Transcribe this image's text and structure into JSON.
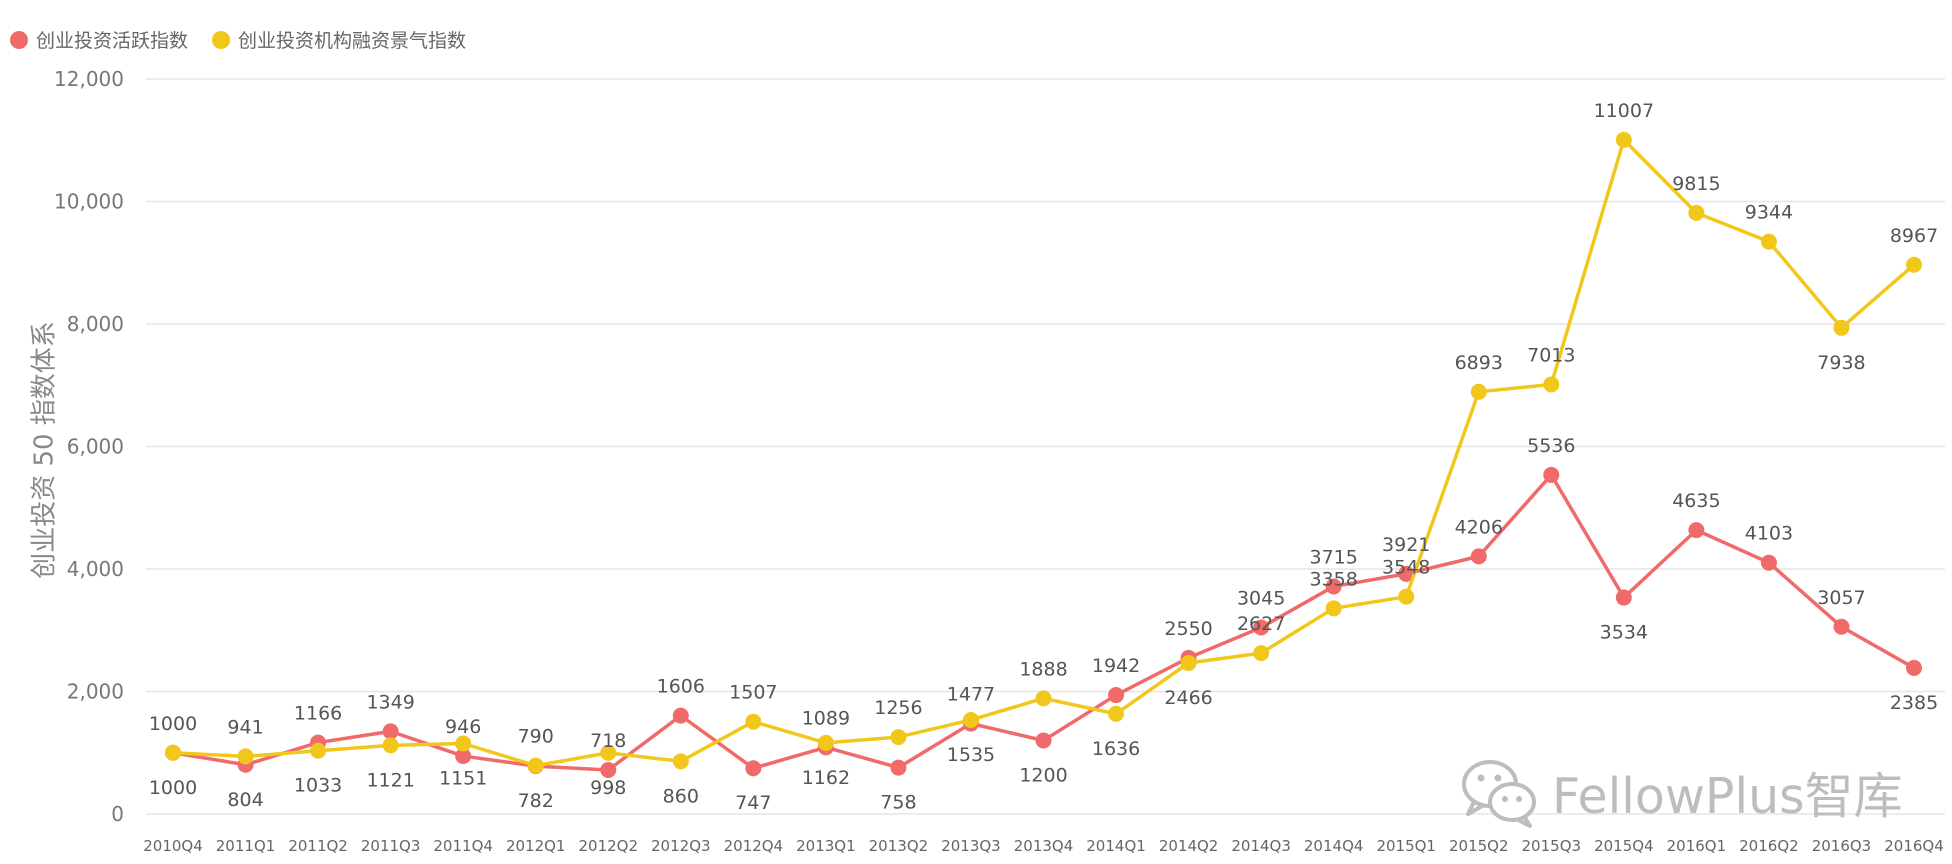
{
  "chart_data": {
    "type": "line",
    "title": "",
    "xlabel": "",
    "ylabel": "创业投资 50 指数体系",
    "ylim": [
      0,
      12000
    ],
    "yticks": [
      0,
      2000,
      4000,
      6000,
      8000,
      10000,
      12000
    ],
    "ytick_labels": [
      "0",
      "2,000",
      "4,000",
      "6,000",
      "8,000",
      "10,000",
      "12,000"
    ],
    "grid": true,
    "legend_position": "top-left",
    "categories": [
      "2010Q4",
      "2011Q1",
      "2011Q2",
      "2011Q3",
      "2011Q4",
      "2012Q1",
      "2012Q2",
      "2012Q3",
      "2012Q4",
      "2013Q1",
      "2013Q2",
      "2013Q3",
      "2013Q4",
      "2014Q1",
      "2014Q2",
      "2014Q3",
      "2014Q4",
      "2015Q1",
      "2015Q2",
      "2015Q3",
      "2015Q4",
      "2016Q1",
      "2016Q2",
      "2016Q3",
      "2016Q4"
    ],
    "series": [
      {
        "name": "创业投资活跃指数",
        "color": "#f06a6a",
        "values": [
          1000,
          804,
          1166,
          1349,
          946,
          782,
          718,
          1606,
          747,
          1089,
          758,
          1477,
          1200,
          1942,
          2550,
          3045,
          3715,
          3921,
          4206,
          5536,
          3534,
          4635,
          4103,
          3057,
          2385
        ],
        "label_positions": [
          "above",
          "below",
          "above",
          "above",
          "above",
          "below",
          "above",
          "above",
          "below",
          "above",
          "below",
          "above",
          "below",
          "above",
          "above",
          "above",
          "above",
          "above",
          "above",
          "above",
          "below",
          "above",
          "above",
          "above",
          "below"
        ]
      },
      {
        "name": "创业投资机构融资景气指数",
        "color": "#f2c71c",
        "values": [
          1000,
          941,
          1033,
          1121,
          1151,
          790,
          998,
          860,
          1507,
          1162,
          1256,
          1535,
          1888,
          1636,
          2466,
          2627,
          3358,
          3548,
          6893,
          7013,
          11007,
          9815,
          9344,
          7938,
          8967
        ],
        "label_positions": [
          "below",
          "above",
          "below",
          "below",
          "below",
          "above",
          "below",
          "below",
          "above",
          "below",
          "above",
          "below",
          "above",
          "below",
          "below",
          "above",
          "above",
          "above",
          "above",
          "above",
          "above",
          "above",
          "above",
          "below",
          "above"
        ]
      }
    ]
  },
  "watermark": {
    "text": "FellowPlus智库",
    "icon": "wechat-icon"
  }
}
